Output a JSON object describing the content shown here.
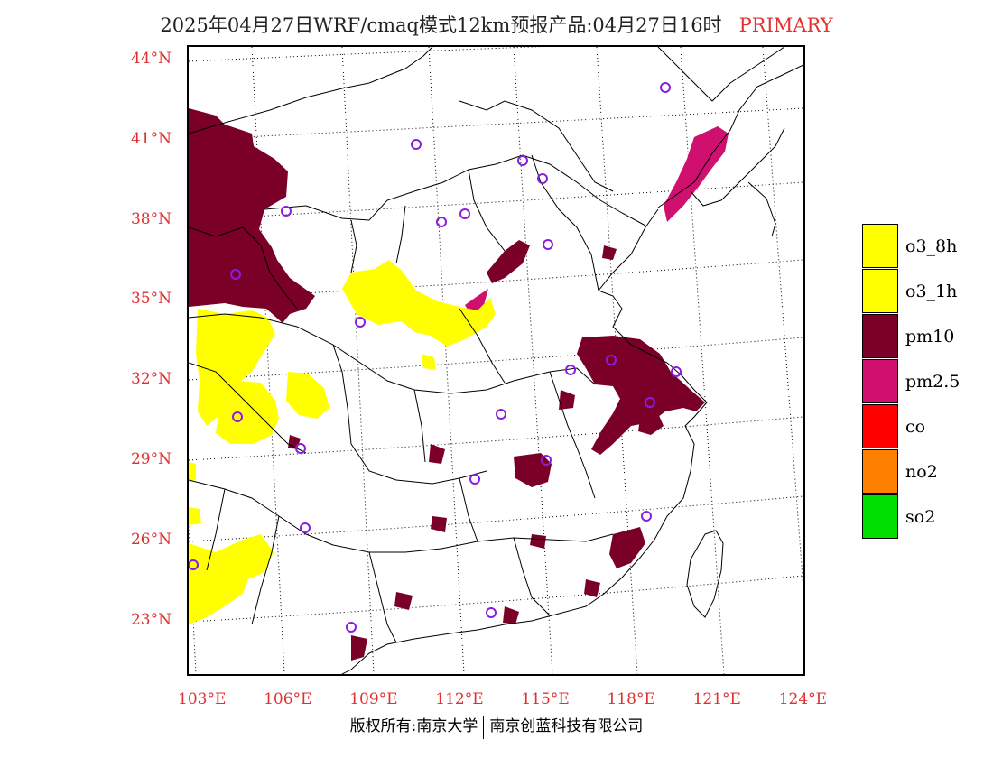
{
  "title": {
    "main": "2025年04月27日WRF/cmaq模式12km预报产品:04月27日16时",
    "tag": "PRIMARY",
    "tag_color": "#e53030"
  },
  "axes": {
    "color": "#e03030",
    "lat_labels": [
      {
        "text": "44°N",
        "lat": 44
      },
      {
        "text": "41°N",
        "lat": 41
      },
      {
        "text": "38°N",
        "lat": 38
      },
      {
        "text": "35°N",
        "lat": 35
      },
      {
        "text": "32°N",
        "lat": 32
      },
      {
        "text": "29°N",
        "lat": 29
      },
      {
        "text": "26°N",
        "lat": 26
      },
      {
        "text": "23°N",
        "lat": 23
      }
    ],
    "lon_labels": [
      {
        "text": "103°E",
        "lon": 103
      },
      {
        "text": "106°E",
        "lon": 106
      },
      {
        "text": "109°E",
        "lon": 109
      },
      {
        "text": "112°E",
        "lon": 112
      },
      {
        "text": "115°E",
        "lon": 115
      },
      {
        "text": "118°E",
        "lon": 118
      },
      {
        "text": "121°E",
        "lon": 121
      },
      {
        "text": "124°E",
        "lon": 124
      }
    ]
  },
  "legend": [
    {
      "label": "o3_8h",
      "color": "#ffff00"
    },
    {
      "label": "o3_1h",
      "color": "#ffff00"
    },
    {
      "label": "pm10",
      "color": "#7a0028"
    },
    {
      "label": "pm2.5",
      "color": "#d0106e"
    },
    {
      "label": "co",
      "color": "#ff0000"
    },
    {
      "label": "no2",
      "color": "#ff8000"
    },
    {
      "label": "so2",
      "color": "#00e000"
    }
  ],
  "map": {
    "city_marker_color": "#8a1ee0",
    "boundary_color": "#000000",
    "grid_color": "#000000"
  },
  "footer": {
    "left": "版权所有:南京大学",
    "right": "南京创蓝科技有限公司"
  }
}
